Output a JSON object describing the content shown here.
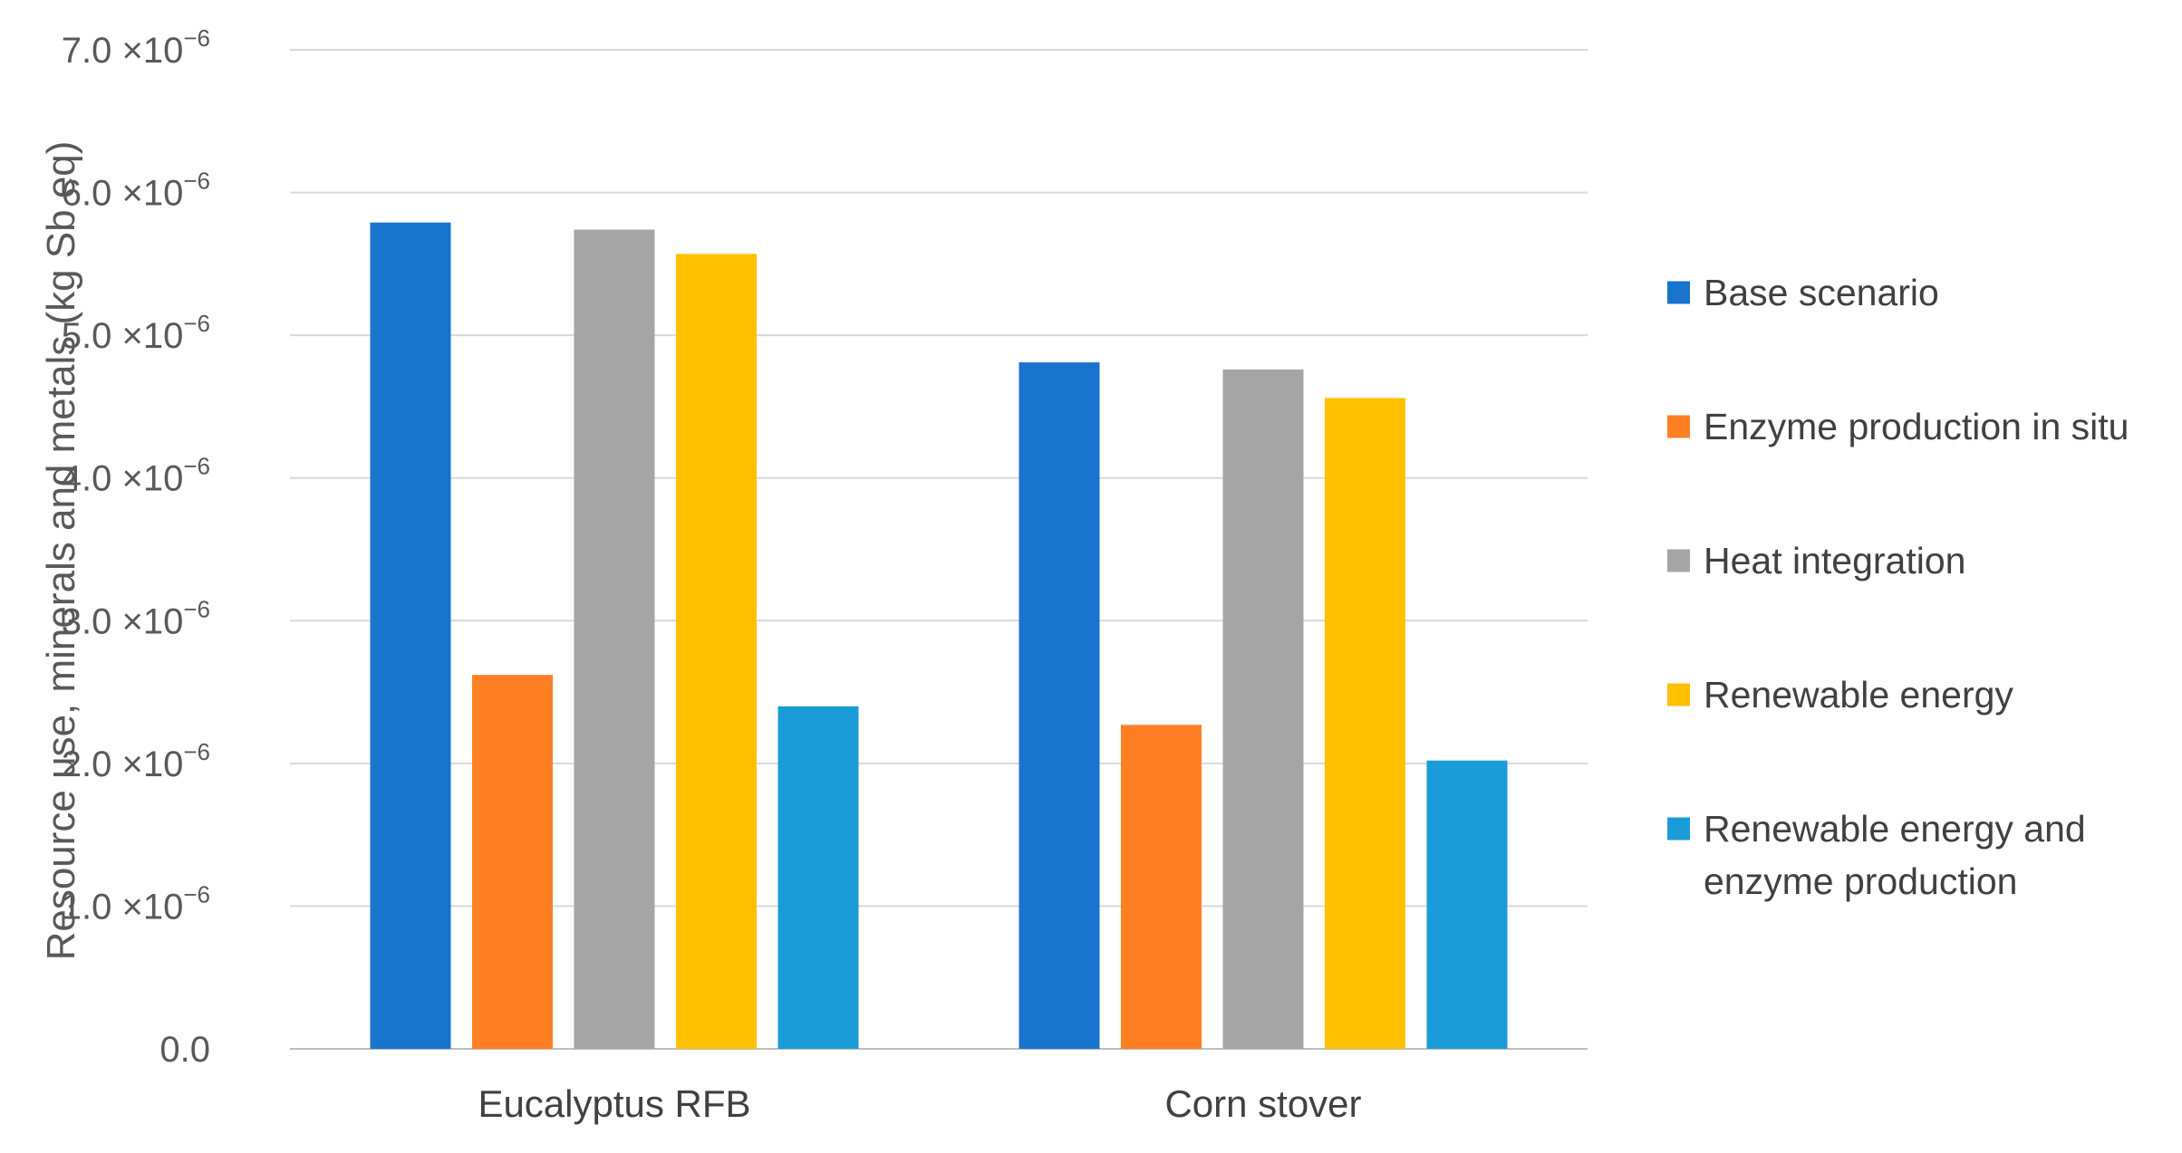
{
  "chart_data": {
    "type": "bar",
    "title": "",
    "xlabel": "",
    "ylabel": "Resource use, minerals and metals (kg Sb eq)",
    "categories": [
      "Eucalyptus RFB",
      "Corn stover"
    ],
    "ylim": [
      0,
      7e-06
    ],
    "y_ticks": [
      {
        "value": 0,
        "mantissa": "0.0",
        "exponent": ""
      },
      {
        "value": 1e-06,
        "mantissa": "1.0",
        "exponent": "−6"
      },
      {
        "value": 2e-06,
        "mantissa": "2.0",
        "exponent": "−6"
      },
      {
        "value": 3e-06,
        "mantissa": "3.0",
        "exponent": "−6"
      },
      {
        "value": 4e-06,
        "mantissa": "4.0",
        "exponent": "−6"
      },
      {
        "value": 5e-06,
        "mantissa": "5.0",
        "exponent": "−6"
      },
      {
        "value": 6e-06,
        "mantissa": "6.0",
        "exponent": "−6"
      },
      {
        "value": 7e-06,
        "mantissa": "7.0",
        "exponent": "−6"
      }
    ],
    "tick_times": "×10",
    "grid": true,
    "legend_position": "right",
    "series": [
      {
        "name": "Base scenario",
        "color": "#1874CD",
        "values": [
          5.79e-06,
          4.81e-06
        ]
      },
      {
        "name": "Enzyme production in situ",
        "color": "#FF7F24",
        "values": [
          2.62e-06,
          2.27e-06
        ]
      },
      {
        "name": "Heat integration",
        "color": "#A5A5A5",
        "values": [
          5.74e-06,
          4.76e-06
        ]
      },
      {
        "name": "Renewable energy",
        "color": "#FFC000",
        "values": [
          5.57e-06,
          4.56e-06
        ]
      },
      {
        "name": "Renewable energy and enzyme production",
        "name_lines": [
          "Renewable energy and",
          "enzyme production"
        ],
        "color": "#1A9CD8",
        "values": [
          2.4e-06,
          2.02e-06
        ]
      }
    ]
  }
}
